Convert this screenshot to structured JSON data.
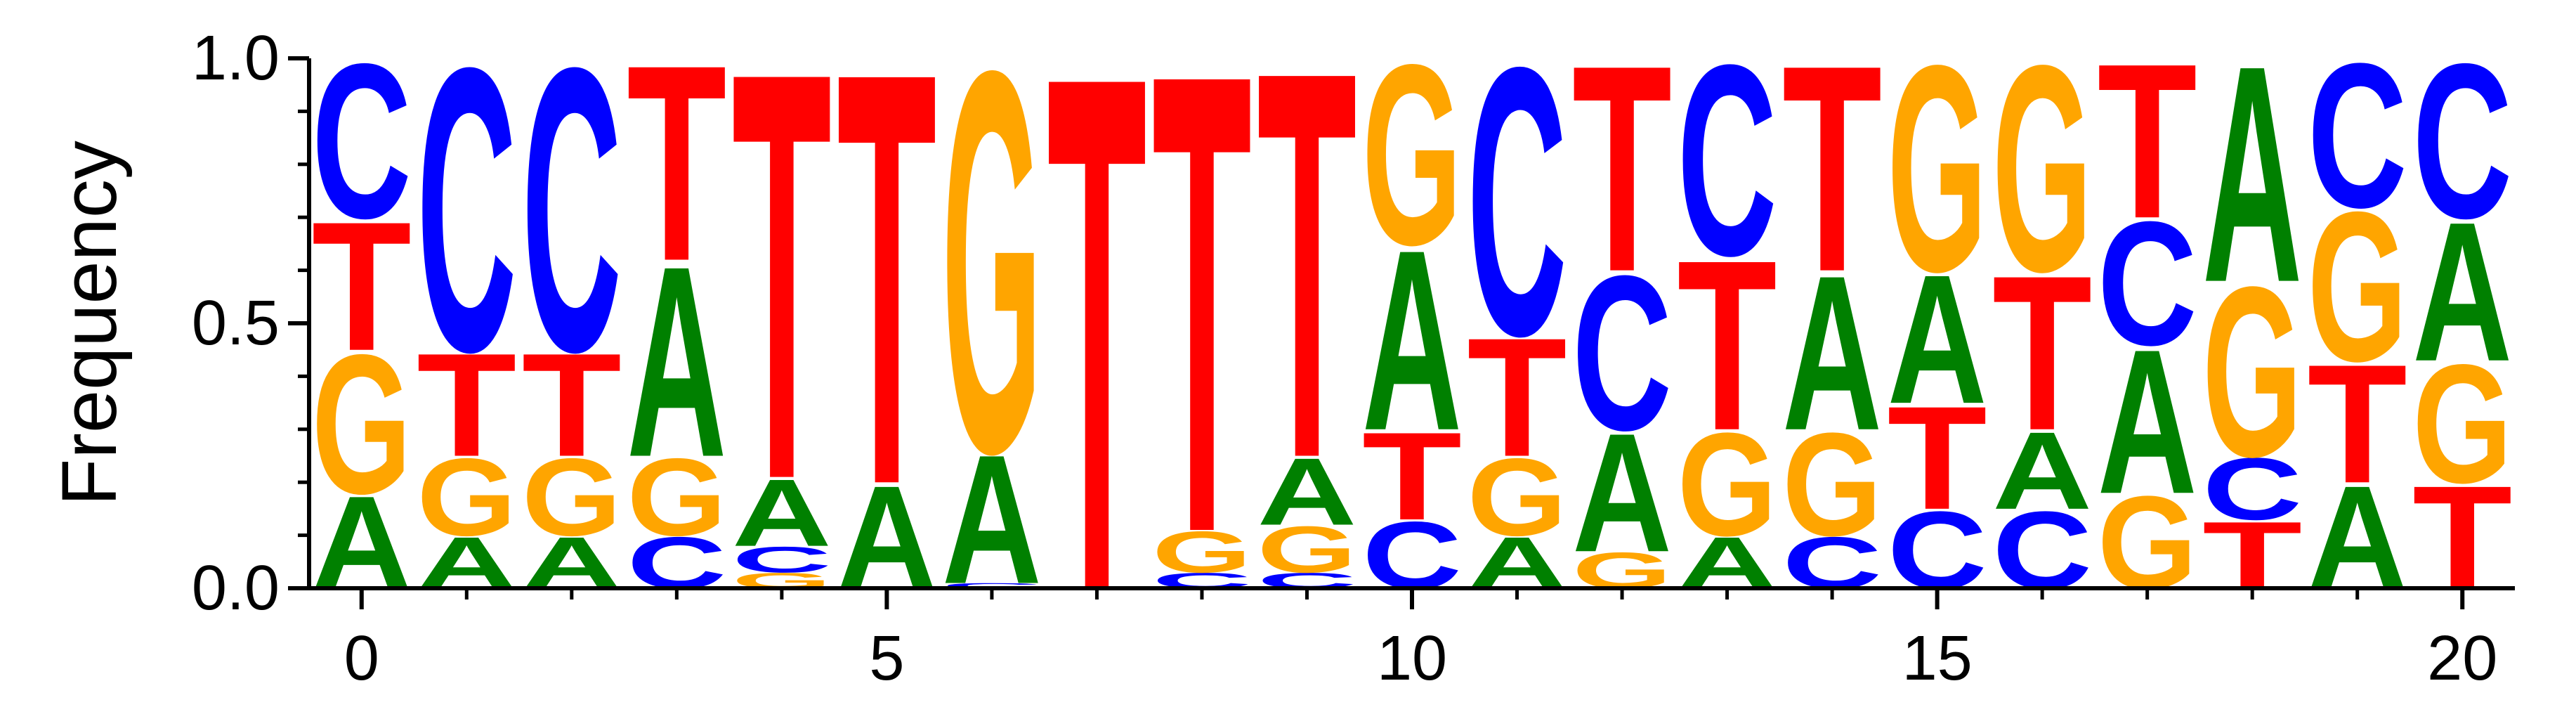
{
  "chart_data": {
    "type": "sequence-logo",
    "ylabel": "Frequency",
    "xlabel": "",
    "title": "",
    "ylim": [
      0,
      1.0
    ],
    "xlim": [
      -0.5,
      20.5
    ],
    "x_ticks": [
      0,
      5,
      10,
      15,
      20
    ],
    "y_ticks": [
      0.0,
      0.5,
      1.0
    ],
    "y_tick_labels": [
      "0.0",
      "0.5",
      "1.0"
    ],
    "grid": false,
    "colors": {
      "A": "#008000",
      "C": "#0000ff",
      "G": "#ffa500",
      "T": "#ff0000"
    },
    "positions": [
      {
        "pos": 0,
        "letters": [
          [
            "A",
            0.18
          ],
          [
            "G",
            0.27
          ],
          [
            "T",
            0.25
          ],
          [
            "C",
            0.3
          ]
        ]
      },
      {
        "pos": 1,
        "letters": [
          [
            "A",
            0.1
          ],
          [
            "G",
            0.15
          ],
          [
            "T",
            0.2
          ],
          [
            "C",
            0.55
          ]
        ]
      },
      {
        "pos": 2,
        "letters": [
          [
            "A",
            0.1
          ],
          [
            "G",
            0.15
          ],
          [
            "T",
            0.2
          ],
          [
            "C",
            0.55
          ]
        ]
      },
      {
        "pos": 3,
        "letters": [
          [
            "C",
            0.1
          ],
          [
            "G",
            0.15
          ],
          [
            "A",
            0.37
          ],
          [
            "T",
            0.38
          ]
        ]
      },
      {
        "pos": 4,
        "letters": [
          [
            "G",
            0.03
          ],
          [
            "C",
            0.05
          ],
          [
            "A",
            0.13
          ],
          [
            "T",
            0.79
          ]
        ]
      },
      {
        "pos": 5,
        "letters": [
          [
            "A",
            0.2
          ],
          [
            "T",
            0.8
          ]
        ]
      },
      {
        "pos": 6,
        "letters": [
          [
            "C",
            0.01
          ],
          [
            "A",
            0.25
          ],
          [
            "G",
            0.74
          ]
        ]
      },
      {
        "pos": 7,
        "letters": [
          [
            "T",
            1.0
          ]
        ]
      },
      {
        "pos": 8,
        "letters": [
          [
            "C",
            0.03
          ],
          [
            "G",
            0.08
          ],
          [
            "T",
            0.89
          ]
        ]
      },
      {
        "pos": 9,
        "letters": [
          [
            "C",
            0.03
          ],
          [
            "G",
            0.09
          ],
          [
            "A",
            0.13
          ],
          [
            "T",
            0.75
          ]
        ]
      },
      {
        "pos": 10,
        "letters": [
          [
            "C",
            0.13
          ],
          [
            "T",
            0.17
          ],
          [
            "A",
            0.35
          ],
          [
            "G",
            0.35
          ]
        ]
      },
      {
        "pos": 11,
        "letters": [
          [
            "A",
            0.1
          ],
          [
            "G",
            0.15
          ],
          [
            "T",
            0.23
          ],
          [
            "C",
            0.52
          ]
        ]
      },
      {
        "pos": 12,
        "letters": [
          [
            "G",
            0.07
          ],
          [
            "A",
            0.23
          ],
          [
            "C",
            0.3
          ],
          [
            "T",
            0.4
          ]
        ]
      },
      {
        "pos": 13,
        "letters": [
          [
            "A",
            0.1
          ],
          [
            "G",
            0.2
          ],
          [
            "T",
            0.33
          ],
          [
            "C",
            0.37
          ]
        ]
      },
      {
        "pos": 14,
        "letters": [
          [
            "C",
            0.1
          ],
          [
            "G",
            0.2
          ],
          [
            "A",
            0.3
          ],
          [
            "T",
            0.4
          ]
        ]
      },
      {
        "pos": 15,
        "letters": [
          [
            "C",
            0.15
          ],
          [
            "T",
            0.2
          ],
          [
            "A",
            0.25
          ],
          [
            "G",
            0.4
          ]
        ]
      },
      {
        "pos": 16,
        "letters": [
          [
            "C",
            0.15
          ],
          [
            "A",
            0.15
          ],
          [
            "T",
            0.3
          ],
          [
            "G",
            0.4
          ]
        ]
      },
      {
        "pos": 17,
        "letters": [
          [
            "G",
            0.18
          ],
          [
            "A",
            0.28
          ],
          [
            "C",
            0.24
          ],
          [
            "T",
            0.3
          ]
        ]
      },
      {
        "pos": 18,
        "letters": [
          [
            "T",
            0.13
          ],
          [
            "C",
            0.12
          ],
          [
            "G",
            0.33
          ],
          [
            "A",
            0.42
          ]
        ]
      },
      {
        "pos": 19,
        "letters": [
          [
            "A",
            0.2
          ],
          [
            "T",
            0.23
          ],
          [
            "G",
            0.29
          ],
          [
            "C",
            0.28
          ]
        ]
      },
      {
        "pos": 20,
        "letters": [
          [
            "T",
            0.2
          ],
          [
            "G",
            0.23
          ],
          [
            "A",
            0.27
          ],
          [
            "C",
            0.3
          ]
        ]
      }
    ]
  }
}
